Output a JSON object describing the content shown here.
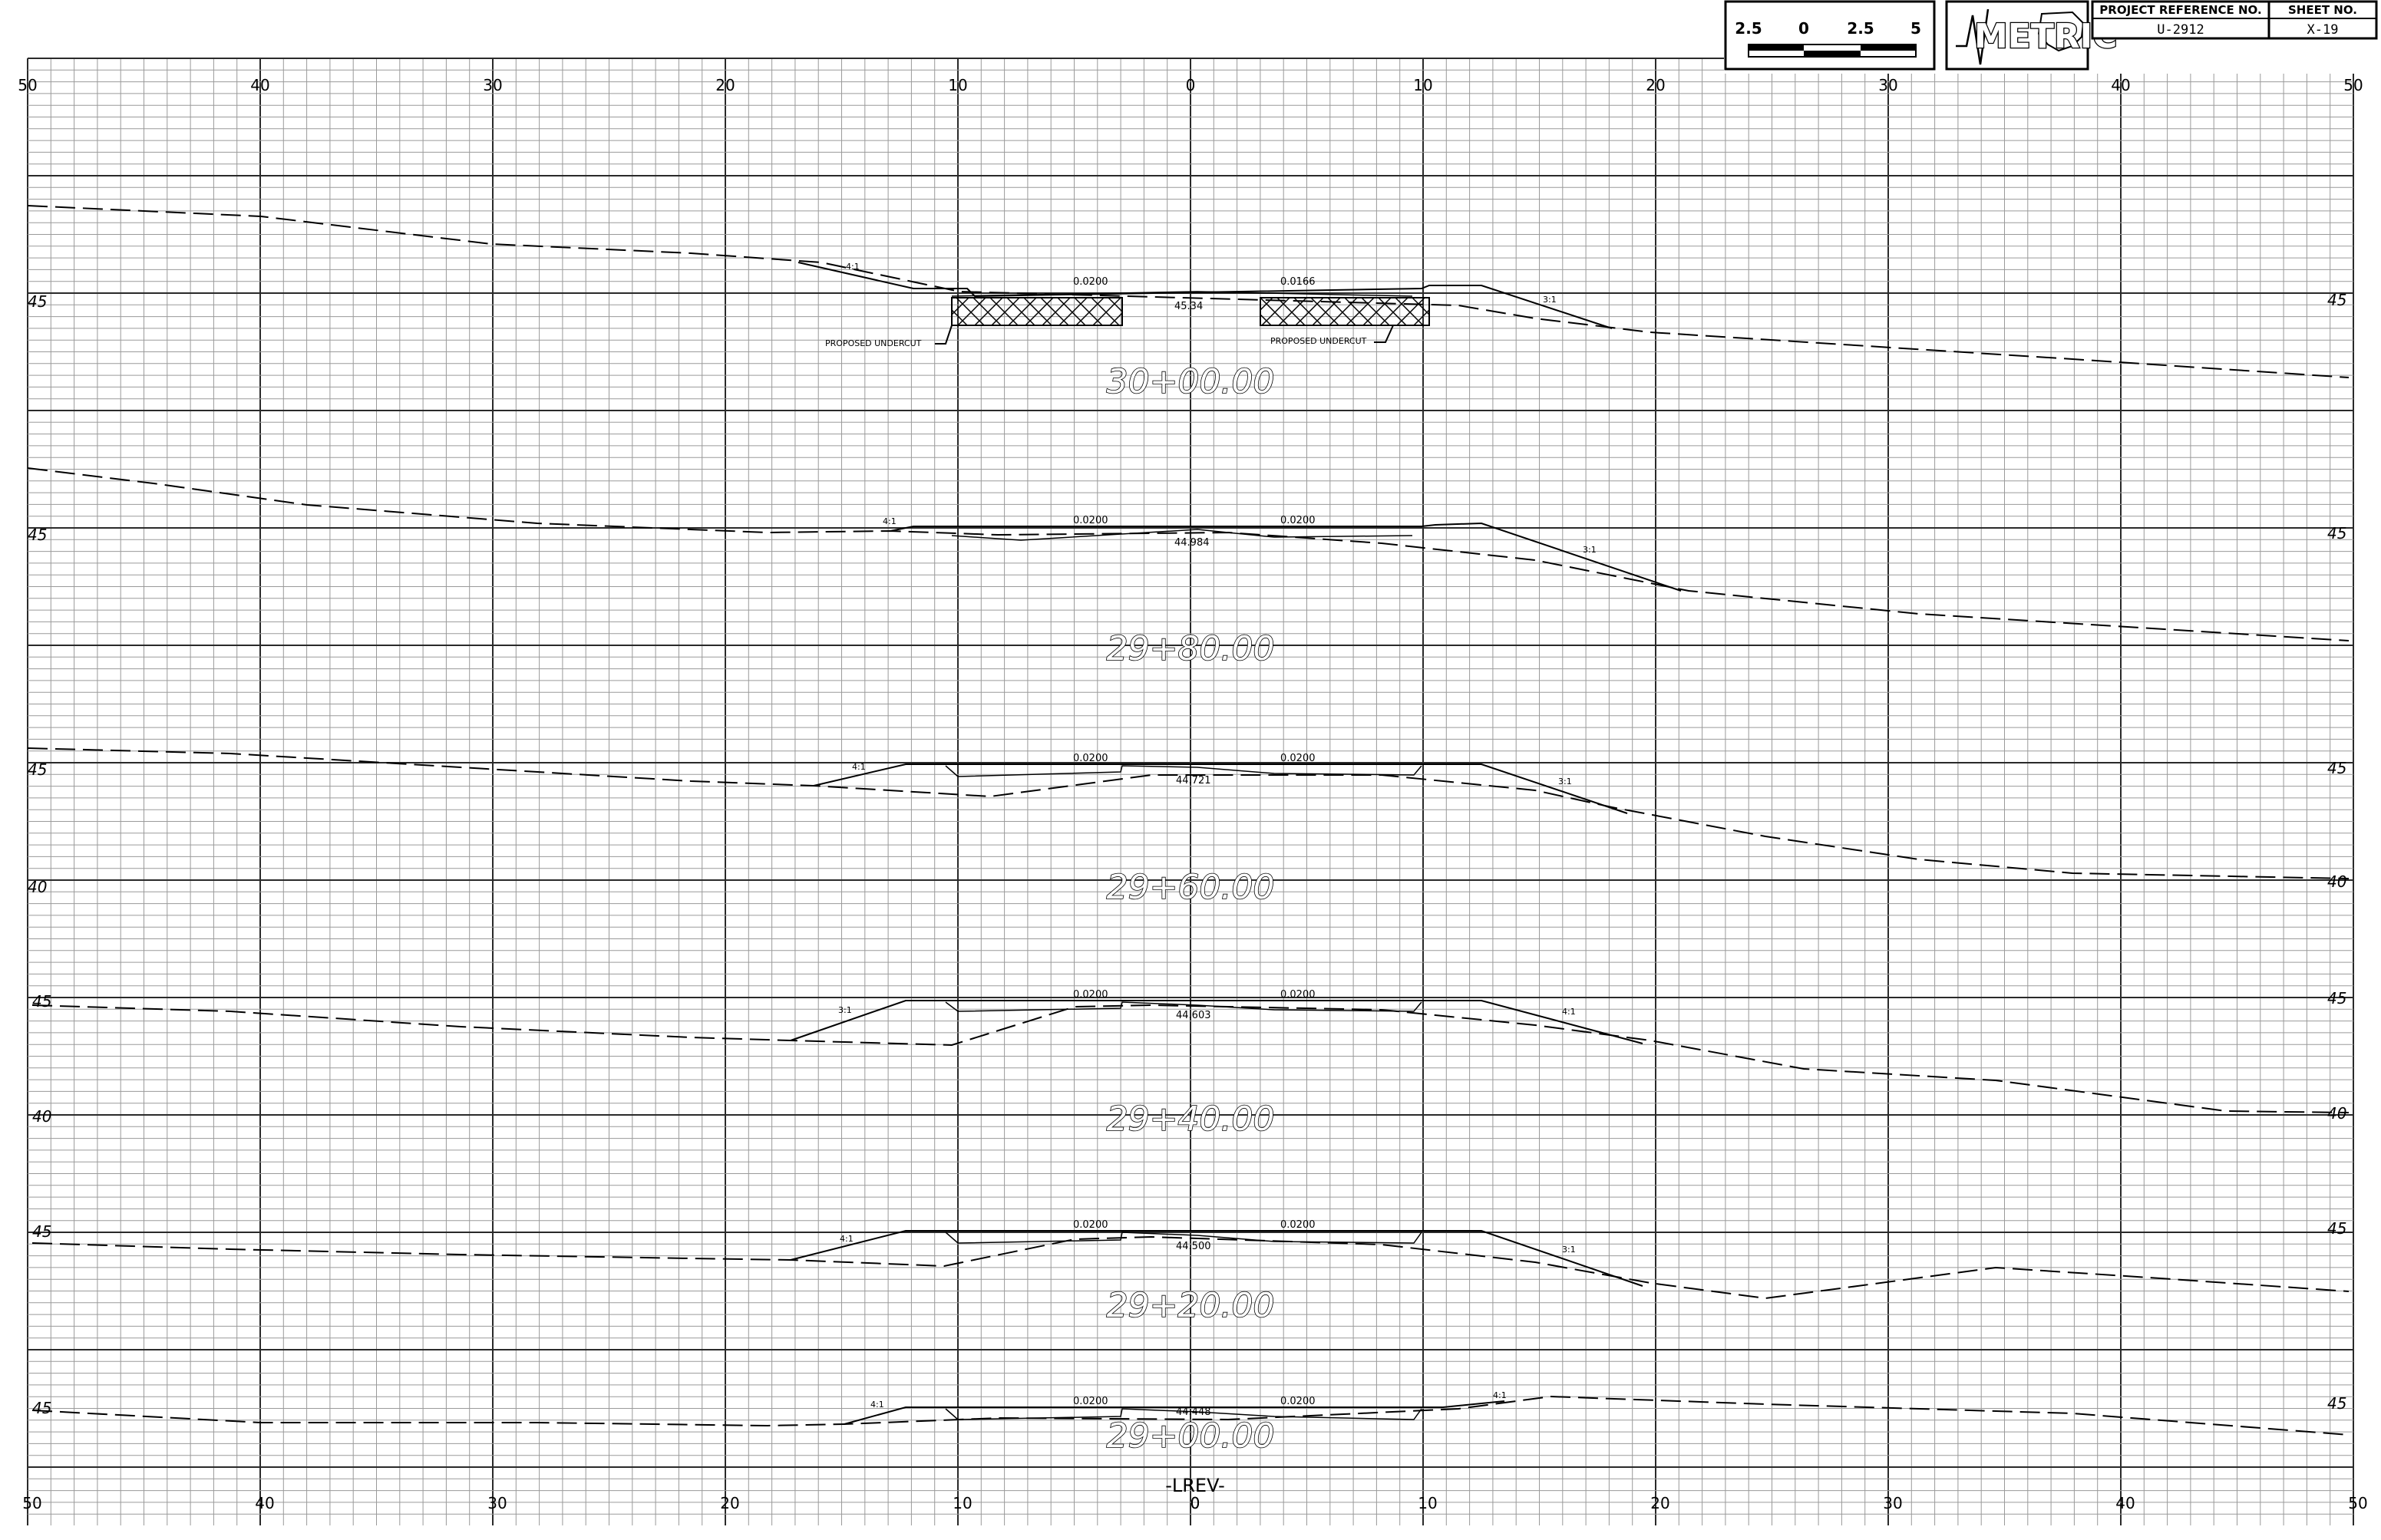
{
  "title_block": {
    "project_reference_label": "PROJECT REFERENCE NO.",
    "project_reference_value": "U-2912",
    "sheet_no_label": "SHEET NO.",
    "sheet_no_value": "X-19",
    "units_logo_text": "METRIC",
    "scale_bar_labels": [
      "2.5",
      "0",
      "2.5",
      "5"
    ]
  },
  "offset_labels_top": [
    "50",
    "40",
    "30",
    "20",
    "10",
    "0",
    "10",
    "20",
    "30",
    "40",
    "50"
  ],
  "offset_labels_bottom": [
    "50",
    "40",
    "30",
    "20",
    "10",
    "0",
    "10",
    "20",
    "30",
    "40",
    "50"
  ],
  "alignment_label": "-LREV-",
  "alignment_sublabel": "0",
  "sections": [
    {
      "station": "30+00.00",
      "elevations": [
        "45"
      ],
      "centerline_elev": "45.34",
      "slope_left": "0.0200",
      "slope_right": "0.0166",
      "left_slope_ratio": "4:1",
      "right_slope_ratio": "3:1",
      "notes": [
        "PROPOSED UNDERCUT",
        "PROPOSED UNDERCUT"
      ]
    },
    {
      "station": "29+80.00",
      "elevations": [
        "45"
      ],
      "centerline_elev": "44.984",
      "slope_left": "0.0200",
      "slope_right": "0.0200",
      "left_slope_ratio": "4:1",
      "right_slope_ratio": "3:1",
      "notes": []
    },
    {
      "station": "29+60.00",
      "elevations": [
        "45",
        "40"
      ],
      "centerline_elev": "44.721",
      "slope_left": "0.0200",
      "slope_right": "0.0200",
      "left_slope_ratio": "4:1",
      "right_slope_ratio": "3:1",
      "notes": []
    },
    {
      "station": "29+40.00",
      "elevations": [
        "45",
        "40"
      ],
      "centerline_elev": "44.603",
      "slope_left": "0.0200",
      "slope_right": "0.0200",
      "left_slope_ratio": "3:1",
      "right_slope_ratio": "4:1",
      "notes": []
    },
    {
      "station": "29+20.00",
      "elevations": [
        "45"
      ],
      "centerline_elev": "44.500",
      "slope_left": "0.0200",
      "slope_right": "0.0200",
      "left_slope_ratio": "4:1",
      "right_slope_ratio": "3:1",
      "notes": []
    },
    {
      "station": "29+00.00",
      "elevations": [
        "45"
      ],
      "centerline_elev": "44.448",
      "slope_left": "0.0200",
      "slope_right": "0.0200",
      "left_slope_ratio": "4:1",
      "right_slope_ratio": "4:1",
      "notes": []
    }
  ]
}
